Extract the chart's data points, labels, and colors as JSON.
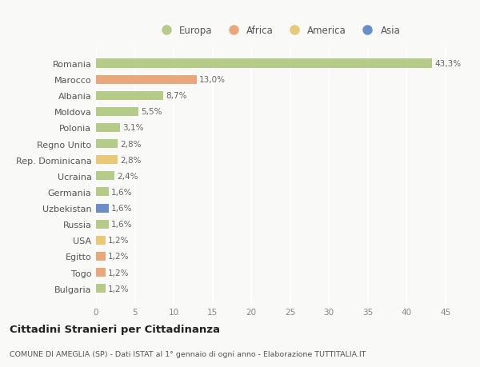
{
  "categories": [
    "Bulgaria",
    "Togo",
    "Egitto",
    "USA",
    "Russia",
    "Uzbekistan",
    "Germania",
    "Ucraina",
    "Rep. Dominicana",
    "Regno Unito",
    "Polonia",
    "Moldova",
    "Albania",
    "Marocco",
    "Romania"
  ],
  "values": [
    1.2,
    1.2,
    1.2,
    1.2,
    1.6,
    1.6,
    1.6,
    2.4,
    2.8,
    2.8,
    3.1,
    5.5,
    8.7,
    13.0,
    43.3
  ],
  "colors": [
    "#b5cc88",
    "#e8a87c",
    "#e8a87c",
    "#e8c97a",
    "#b5cc88",
    "#6a8fc8",
    "#b5cc88",
    "#b5cc88",
    "#e8c97a",
    "#b5cc88",
    "#b5cc88",
    "#b5cc88",
    "#b5cc88",
    "#e8a87c",
    "#b5cc88"
  ],
  "labels": [
    "1,2%",
    "1,2%",
    "1,2%",
    "1,2%",
    "1,6%",
    "1,6%",
    "1,6%",
    "2,4%",
    "2,8%",
    "2,8%",
    "3,1%",
    "5,5%",
    "8,7%",
    "13,0%",
    "43,3%"
  ],
  "legend_labels": [
    "Europa",
    "Africa",
    "America",
    "Asia"
  ],
  "legend_colors": [
    "#b5cc88",
    "#e8a87c",
    "#e8c97a",
    "#6a8fc8"
  ],
  "xlim": [
    0,
    47
  ],
  "xticks": [
    0,
    5,
    10,
    15,
    20,
    25,
    30,
    35,
    40,
    45
  ],
  "title": "Cittadini Stranieri per Cittadinanza",
  "subtitle": "COMUNE DI AMEGLIA (SP) - Dati ISTAT al 1° gennaio di ogni anno - Elaborazione TUTTITALIA.IT",
  "bg_color": "#f9f9f7",
  "grid_color": "#ffffff",
  "bar_height": 0.55
}
